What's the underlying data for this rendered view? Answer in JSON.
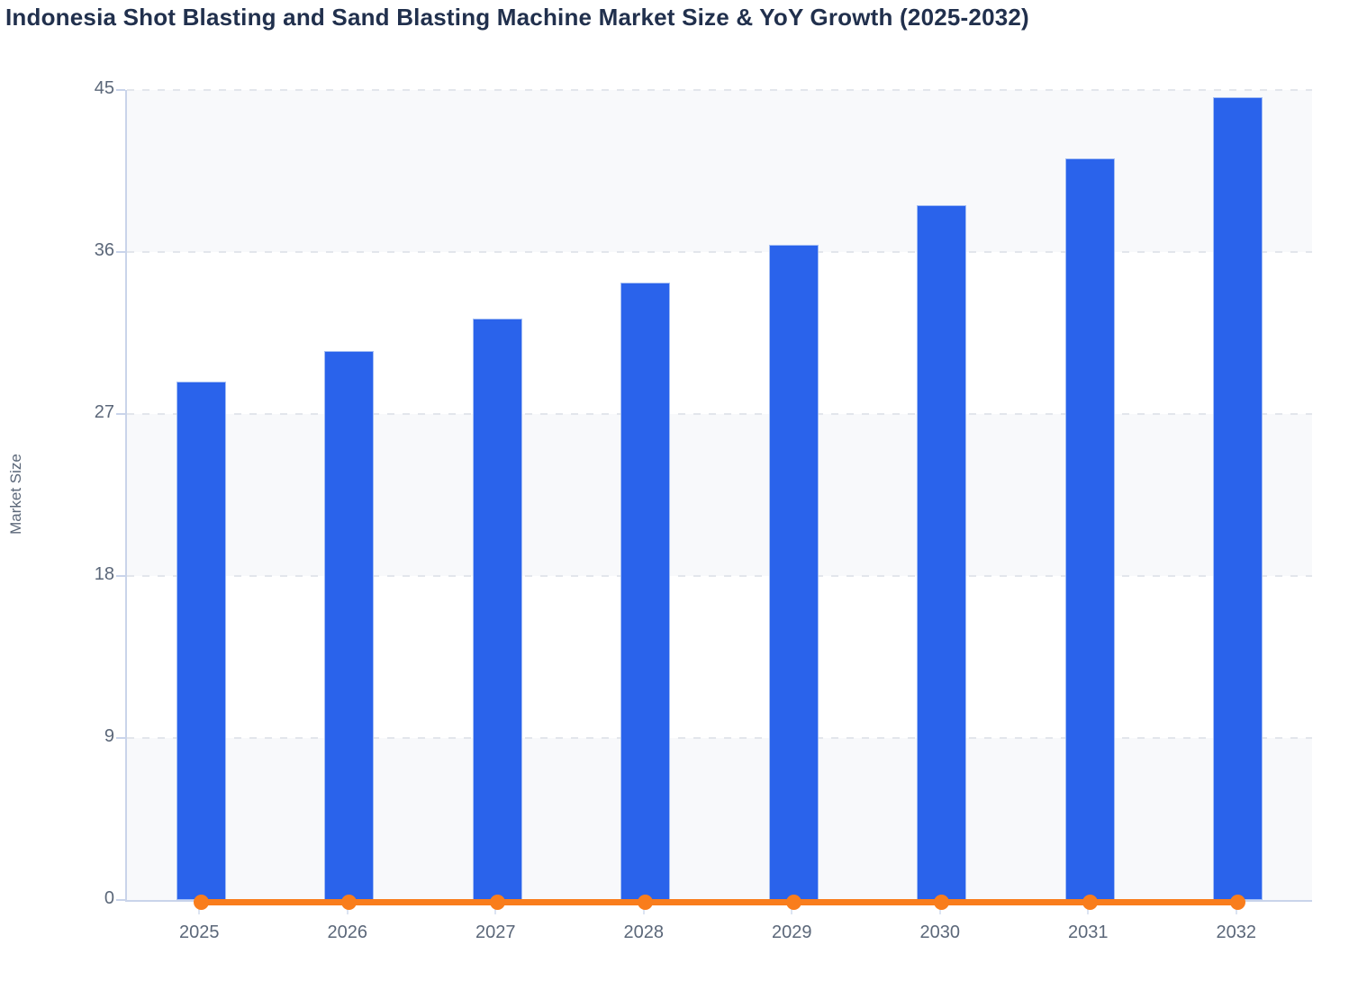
{
  "page": {
    "background": "#ffffff"
  },
  "chart_data": {
    "type": "bar",
    "title": "Indonesia Shot Blasting and Sand Blasting Machine Market Size & YoY Growth (2025-2032)",
    "xlabel": "",
    "ylabel": "Market Size",
    "categories": [
      "2025",
      "2026",
      "2027",
      "2028",
      "2029",
      "2030",
      "2031",
      "2032"
    ],
    "series": [
      {
        "name": "Market Size",
        "type": "column",
        "color": "#2a63eb",
        "values": [
          28.8,
          30.5,
          32.3,
          34.3,
          36.4,
          38.6,
          41.2,
          44.6
        ]
      },
      {
        "name": "YoY Growth",
        "type": "line",
        "color": "#f97d1c",
        "marker": "circle",
        "values": [
          0,
          0,
          0,
          0,
          0,
          0,
          0,
          0
        ]
      }
    ],
    "ylim": [
      0,
      45
    ],
    "yticks": [
      45,
      36,
      27,
      18,
      9,
      0
    ],
    "grid": "horizontal-dashed",
    "legend_position": "none",
    "plot_band_colors": [
      "#f8f9fb",
      "#ffffff"
    ]
  },
  "style": {
    "title_color": "#21304d",
    "axis_text_color": "#5b6779",
    "axis_line_color": "#c9d4ea",
    "gridline_color": "#e3e6ec",
    "band_color": "#f8f9fb"
  }
}
